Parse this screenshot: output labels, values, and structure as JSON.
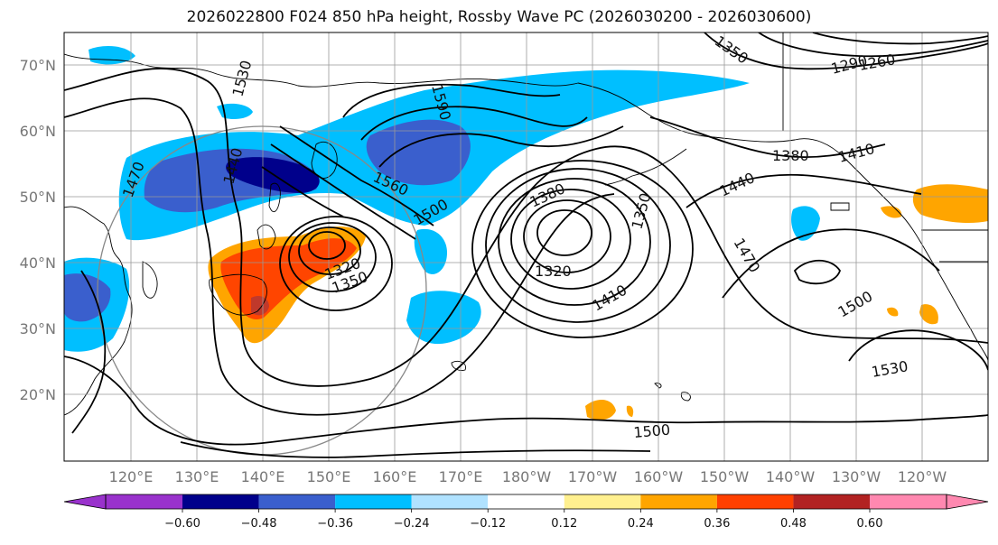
{
  "title": "2026022800 F024 850 hPa height, Rossby Wave PC (2026030200 - 2026030600)",
  "lat_labels": [
    "70°N",
    "60°N",
    "50°N",
    "40°N",
    "30°N",
    "20°N"
  ],
  "lon_labels": [
    "120°E",
    "130°E",
    "140°E",
    "150°E",
    "160°E",
    "170°E",
    "180°W",
    "170°W",
    "160°W",
    "150°W",
    "140°W",
    "130°W",
    "120°W"
  ],
  "contour_labels": [
    "1530",
    "1590",
    "1560",
    "1500",
    "1380",
    "1350",
    "1320",
    "1410",
    "1440",
    "1470",
    "1500",
    "1530",
    "1500",
    "1470",
    "1440",
    "1320",
    "1350",
    "1290",
    "1260",
    "1380",
    "1410",
    "1350"
  ],
  "colorbar": {
    "ticks": [
      "−0.60",
      "−0.48",
      "−0.36",
      "−0.24",
      "−0.12",
      "0.12",
      "0.24",
      "0.36",
      "0.48",
      "0.60"
    ],
    "colors": [
      "#9932cc",
      "#00008b",
      "#3a5fcd",
      "#00bfff",
      "#b0e2ff",
      "#ffffff",
      "#fff08f",
      "#ffa500",
      "#ff4000",
      "#b22222",
      "#ff88b0"
    ]
  },
  "colors": {
    "positive_light": "#ffa500",
    "positive_mid": "#ff4500",
    "positive_dark": "#c0392b",
    "negative_light": "#00bfff",
    "negative_mid": "#3a5fcd",
    "negative_dark": "#00008b"
  }
}
